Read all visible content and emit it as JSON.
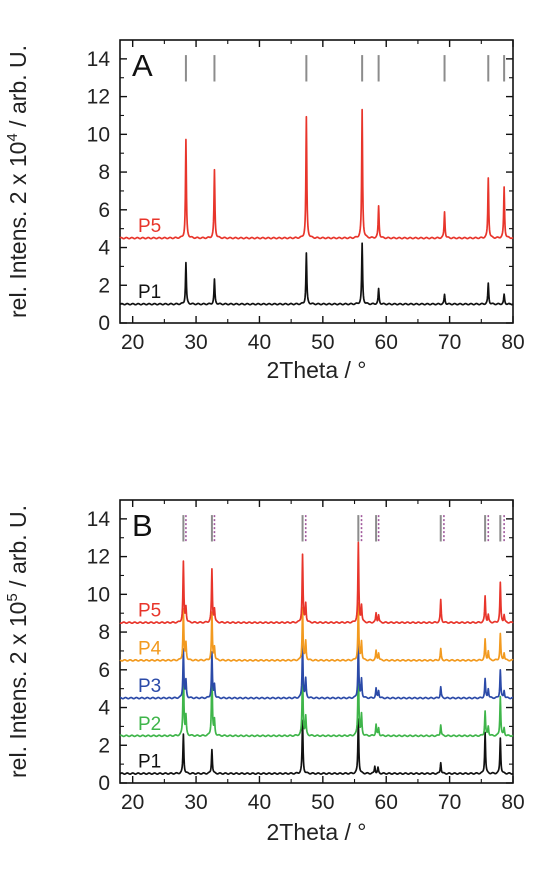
{
  "chart_data": [
    {
      "panel": "A",
      "type": "line",
      "xlabel": "2Theta / °",
      "ylabel_prefix": "rel. Intens. 2 x 10",
      "ylabel_exp": "4",
      "ylabel_suffix": " / arb. U.",
      "xlim": [
        18,
        80
      ],
      "ylim": [
        0,
        15
      ],
      "xticks": [
        20,
        30,
        40,
        50,
        60,
        70,
        80
      ],
      "yticks": [
        0,
        2,
        4,
        6,
        8,
        10,
        12,
        14
      ],
      "reference_marks": [
        {
          "color": "#8c8c8c",
          "positions": [
            28.4,
            32.9,
            47.4,
            56.2,
            58.8,
            69.2,
            76.1,
            78.6
          ]
        }
      ],
      "series": [
        {
          "name": "P1",
          "color": "#111111",
          "baseline": 1.0,
          "peaks": [
            [
              28.4,
              2.2
            ],
            [
              32.9,
              1.3
            ],
            [
              47.4,
              2.7
            ],
            [
              56.2,
              3.2
            ],
            [
              58.8,
              0.8
            ],
            [
              69.2,
              0.5
            ],
            [
              76.1,
              1.1
            ],
            [
              78.6,
              0.5
            ]
          ]
        },
        {
          "name": "P5",
          "color": "#e8352b",
          "baseline": 4.5,
          "peaks": [
            [
              28.4,
              5.2
            ],
            [
              32.9,
              3.6
            ],
            [
              47.4,
              6.4
            ],
            [
              56.2,
              6.8
            ],
            [
              58.8,
              1.7
            ],
            [
              69.2,
              1.4
            ],
            [
              76.1,
              3.2
            ],
            [
              78.6,
              2.7
            ]
          ]
        }
      ]
    },
    {
      "panel": "B",
      "type": "line",
      "xlabel": "2Theta / °",
      "ylabel_prefix": "rel. Intens. 2 x 10",
      "ylabel_exp": "5",
      "ylabel_suffix": " / arb. U.",
      "xlim": [
        18,
        80
      ],
      "ylim": [
        0,
        15
      ],
      "xticks": [
        20,
        30,
        40,
        50,
        60,
        70,
        80
      ],
      "yticks": [
        0,
        2,
        4,
        6,
        8,
        10,
        12,
        14
      ],
      "reference_marks": [
        {
          "color": "#8c8c8c",
          "positions": [
            28.0,
            32.5,
            46.8,
            55.6,
            58.4,
            68.6,
            75.6,
            78.0
          ]
        },
        {
          "color": "#a05a9c",
          "positions": [
            28.4,
            32.9,
            47.3,
            56.1,
            58.8,
            69.1,
            76.1,
            78.6
          ]
        }
      ],
      "series": [
        {
          "name": "P1",
          "color": "#111111",
          "baseline": 0.5,
          "peaks": [
            [
              28.0,
              2.1
            ],
            [
              32.5,
              1.3
            ],
            [
              46.8,
              2.8
            ],
            [
              55.6,
              2.9
            ],
            [
              58.2,
              0.4
            ],
            [
              58.7,
              0.3
            ],
            [
              68.6,
              0.6
            ],
            [
              75.6,
              2.2
            ],
            [
              78.0,
              1.9
            ]
          ]
        },
        {
          "name": "P2",
          "color": "#3fb54a",
          "baseline": 2.5,
          "peaks": [
            [
              28.0,
              3.9
            ],
            [
              28.4,
              1.0
            ],
            [
              32.5,
              3.6
            ],
            [
              32.9,
              0.8
            ],
            [
              46.8,
              3.7
            ],
            [
              47.3,
              1.0
            ],
            [
              55.6,
              4.0
            ],
            [
              56.1,
              1.1
            ],
            [
              58.4,
              0.6
            ],
            [
              58.8,
              0.4
            ],
            [
              68.6,
              0.6
            ],
            [
              75.6,
              1.3
            ],
            [
              76.1,
              0.5
            ],
            [
              78.0,
              2.1
            ],
            [
              78.6,
              0.4
            ]
          ]
        },
        {
          "name": "P3",
          "color": "#2b4aa8",
          "baseline": 4.5,
          "peaks": [
            [
              28.0,
              2.6
            ],
            [
              28.4,
              0.9
            ],
            [
              32.5,
              2.4
            ],
            [
              32.9,
              0.7
            ],
            [
              46.8,
              2.9
            ],
            [
              47.3,
              1.0
            ],
            [
              55.6,
              3.0
            ],
            [
              56.1,
              1.0
            ],
            [
              58.4,
              0.5
            ],
            [
              58.8,
              0.4
            ],
            [
              68.6,
              0.6
            ],
            [
              75.6,
              1.0
            ],
            [
              76.1,
              0.5
            ],
            [
              78.0,
              1.5
            ],
            [
              78.6,
              0.4
            ]
          ]
        },
        {
          "name": "P4",
          "color": "#f29a1f",
          "baseline": 6.5,
          "peaks": [
            [
              28.0,
              2.7
            ],
            [
              28.4,
              0.9
            ],
            [
              32.5,
              2.5
            ],
            [
              32.9,
              0.7
            ],
            [
              46.8,
              2.8
            ],
            [
              47.3,
              1.0
            ],
            [
              55.6,
              3.0
            ],
            [
              56.1,
              1.0
            ],
            [
              58.4,
              0.5
            ],
            [
              58.8,
              0.4
            ],
            [
              68.6,
              0.6
            ],
            [
              75.6,
              1.1
            ],
            [
              76.1,
              0.5
            ],
            [
              78.0,
              1.4
            ],
            [
              78.6,
              0.4
            ]
          ]
        },
        {
          "name": "P5",
          "color": "#e8352b",
          "baseline": 8.5,
          "peaks": [
            [
              28.0,
              3.2
            ],
            [
              28.4,
              0.8
            ],
            [
              32.5,
              2.8
            ],
            [
              32.9,
              0.7
            ],
            [
              46.8,
              3.6
            ],
            [
              47.3,
              1.0
            ],
            [
              55.6,
              4.2
            ],
            [
              56.1,
              0.9
            ],
            [
              58.4,
              0.5
            ],
            [
              58.8,
              0.4
            ],
            [
              68.6,
              1.2
            ],
            [
              75.6,
              1.4
            ],
            [
              76.1,
              0.4
            ],
            [
              78.0,
              2.1
            ],
            [
              78.6,
              0.4
            ]
          ]
        }
      ]
    }
  ]
}
